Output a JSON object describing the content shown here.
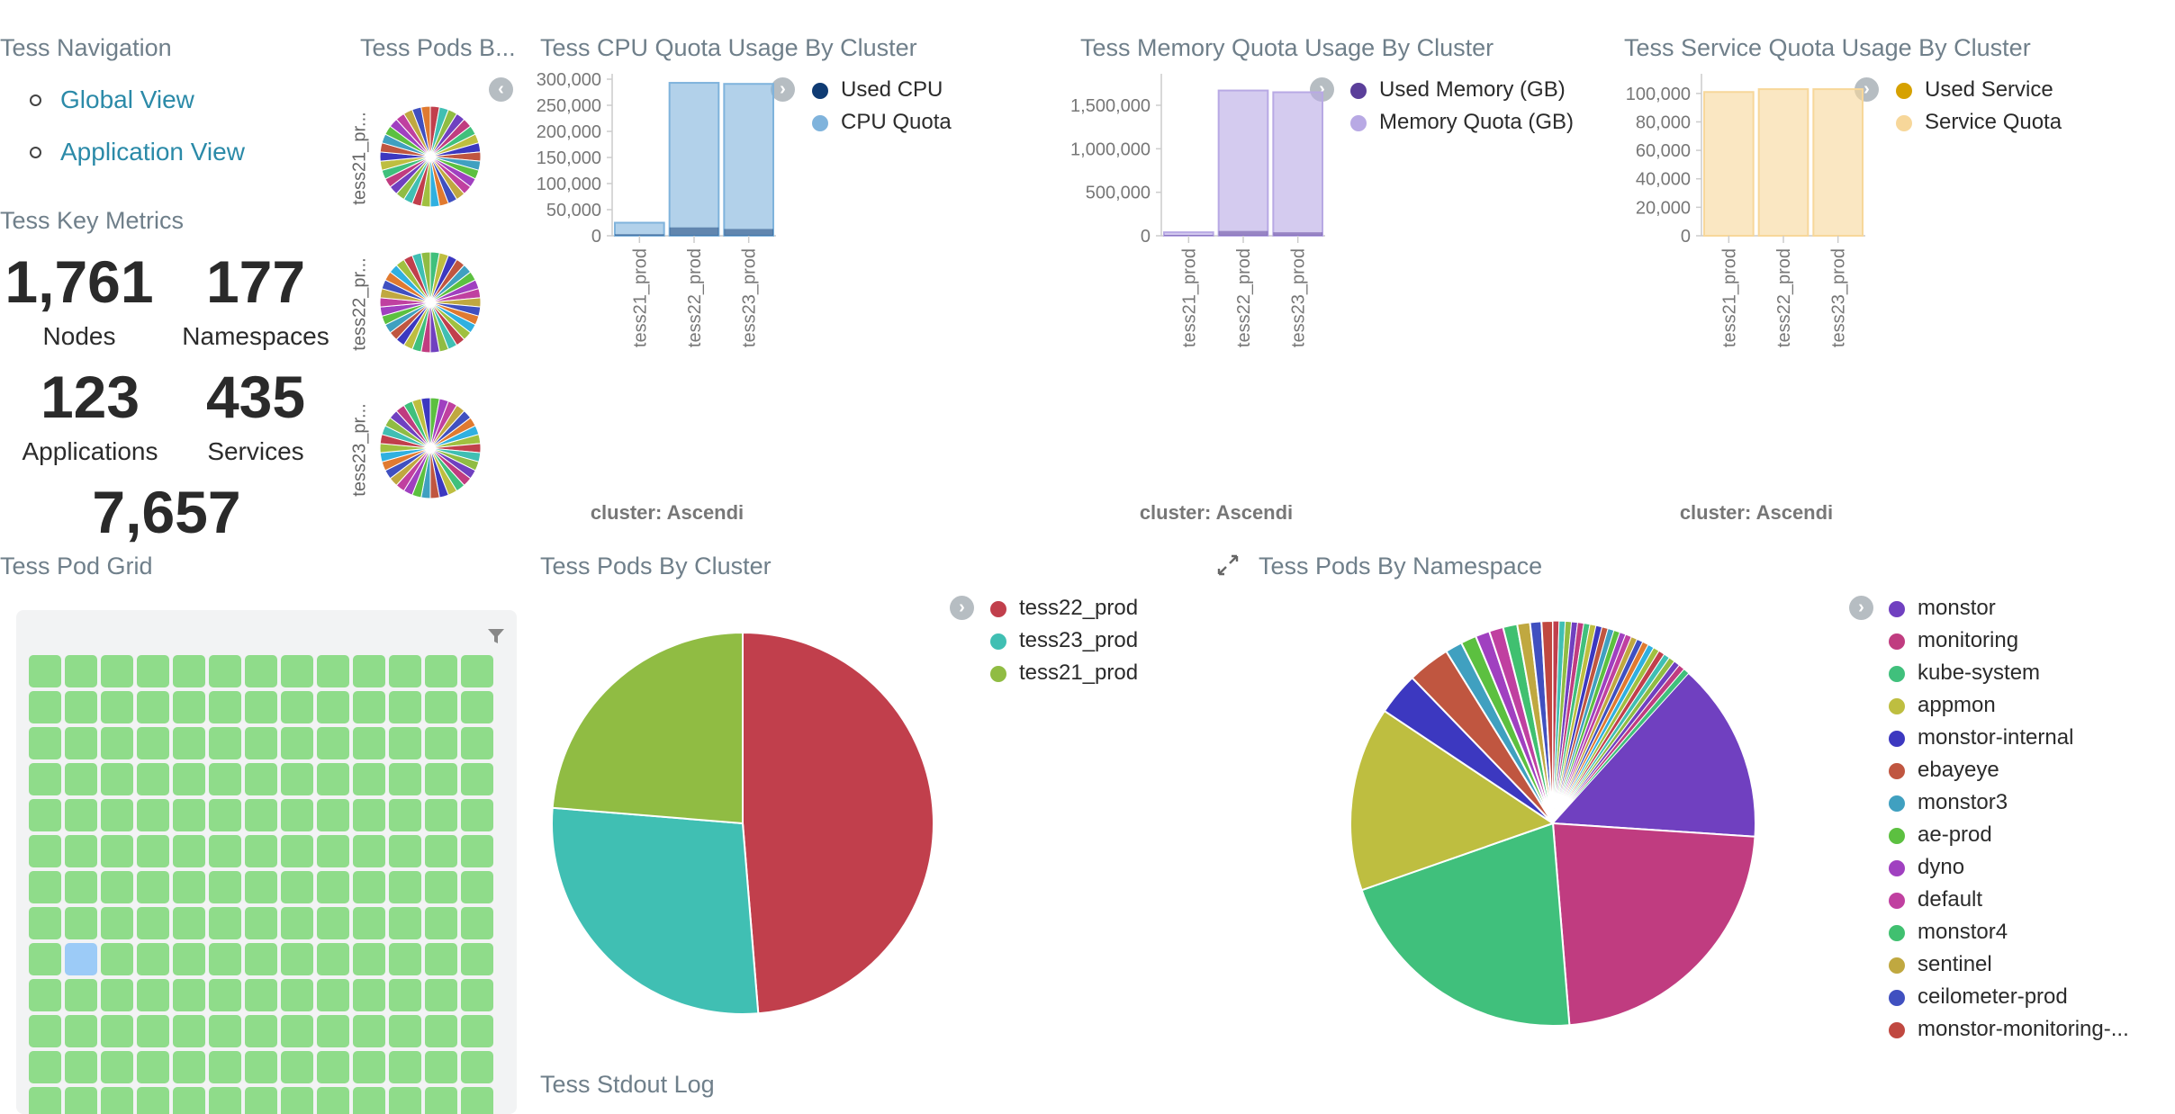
{
  "nav": {
    "title": "Tess Navigation",
    "links": [
      "Global View",
      "Application View"
    ]
  },
  "metrics": {
    "title": "Tess Key Metrics",
    "items": [
      {
        "value": "1,761",
        "label": "Nodes"
      },
      {
        "value": "177",
        "label": "Namespaces"
      },
      {
        "value": "123",
        "label": "Applications"
      },
      {
        "value": "435",
        "label": "Services"
      },
      {
        "value": "7,657",
        "label": ""
      }
    ]
  },
  "small_pies": {
    "title": "Tess Pods B...",
    "labels": [
      "tess21_pr...",
      "tess22_pr...",
      "tess23_pr..."
    ]
  },
  "colors": {
    "link": "#2b8aa8",
    "tile_green": "#8fdc8a",
    "tile_selected": "#9ccbf7",
    "cpu_used": "#0f3b73",
    "cpu_quota": "#7fb3dc",
    "mem_used": "#5b3f9a",
    "mem_quota": "#b8a9e4",
    "svc_used": "#d6a100",
    "svc_quota": "#f7d79a"
  },
  "chart_data": [
    {
      "type": "bar",
      "title": "Tess CPU Quota Usage By Cluster",
      "categories": [
        "tess21_prod",
        "tess22_prod",
        "tess23_prod"
      ],
      "series": [
        {
          "name": "Used CPU",
          "values": [
            3000,
            16000,
            13000
          ]
        },
        {
          "name": "CPU Quota",
          "values": [
            25000,
            293000,
            291000
          ]
        }
      ],
      "yticks": [
        "300,000",
        "250,000",
        "200,000",
        "150,000",
        "100,000",
        "50,000",
        "0"
      ],
      "ylim": [
        0,
        300000
      ],
      "xlabel": "cluster: Ascendi",
      "legend": "right"
    },
    {
      "type": "bar",
      "title": "Tess Memory Quota Usage By Cluster",
      "categories": [
        "tess21_prod",
        "tess22_prod",
        "tess23_prod"
      ],
      "series": [
        {
          "name": "Used Memory (GB)",
          "values": [
            10000,
            55000,
            40000
          ]
        },
        {
          "name": "Memory Quota (GB)",
          "values": [
            40000,
            1670000,
            1650000
          ]
        }
      ],
      "yticks": [
        "1,500,000",
        "1,000,000",
        "500,000",
        "0"
      ],
      "ylim": [
        0,
        1800000
      ],
      "xlabel": "cluster: Ascendi",
      "legend": "right"
    },
    {
      "type": "bar",
      "title": "Tess Service Quota Usage By Cluster",
      "categories": [
        "tess21_prod",
        "tess22_prod",
        "tess23_prod"
      ],
      "series": [
        {
          "name": "Used Service",
          "values": [
            0,
            0,
            0
          ]
        },
        {
          "name": "Service Quota",
          "values": [
            101000,
            103000,
            103000
          ]
        }
      ],
      "yticks": [
        "100,000",
        "80,000",
        "60,000",
        "40,000",
        "20,000",
        "0"
      ],
      "ylim": [
        0,
        110000
      ],
      "xlabel": "cluster: Ascendi",
      "legend": "right"
    },
    {
      "type": "pie",
      "title": "Tess Pods By Cluster",
      "labels": [
        "tess22_prod",
        "tess23_prod",
        "tess21_prod"
      ],
      "values": [
        48.7,
        27.6,
        23.7
      ],
      "colors": [
        "#c13f4c",
        "#40bfb3",
        "#90bc43"
      ],
      "legend": "right"
    },
    {
      "type": "pie",
      "title": "Tess Pods By Namespace",
      "labels": [
        "monstor",
        "monitoring",
        "kube-system",
        "appmon",
        "monstor-internal",
        "ebayeye",
        "monstor3",
        "ae-prod",
        "dyno",
        "default",
        "monstor4",
        "sentinel",
        "ceilometer-prod",
        "monstor-monitoring-..."
      ],
      "values": [
        23,
        20,
        18.5,
        13,
        3,
        3,
        1.2,
        1.1,
        1,
        1,
        1,
        0.9,
        0.8,
        0.8
      ],
      "colors": [
        "#7040c0",
        "#c03c80",
        "#40c07c",
        "#bebe40",
        "#3c38c0",
        "#c05640",
        "#40a0c0",
        "#5cc040",
        "#a040c0",
        "#c040a0",
        "#40c070",
        "#c0a840",
        "#4050c0",
        "#c04840"
      ],
      "legend": "right"
    }
  ],
  "pod_grid": {
    "title": "Tess Pod Grid"
  },
  "stdout": {
    "title": "Tess Stdout Log"
  }
}
